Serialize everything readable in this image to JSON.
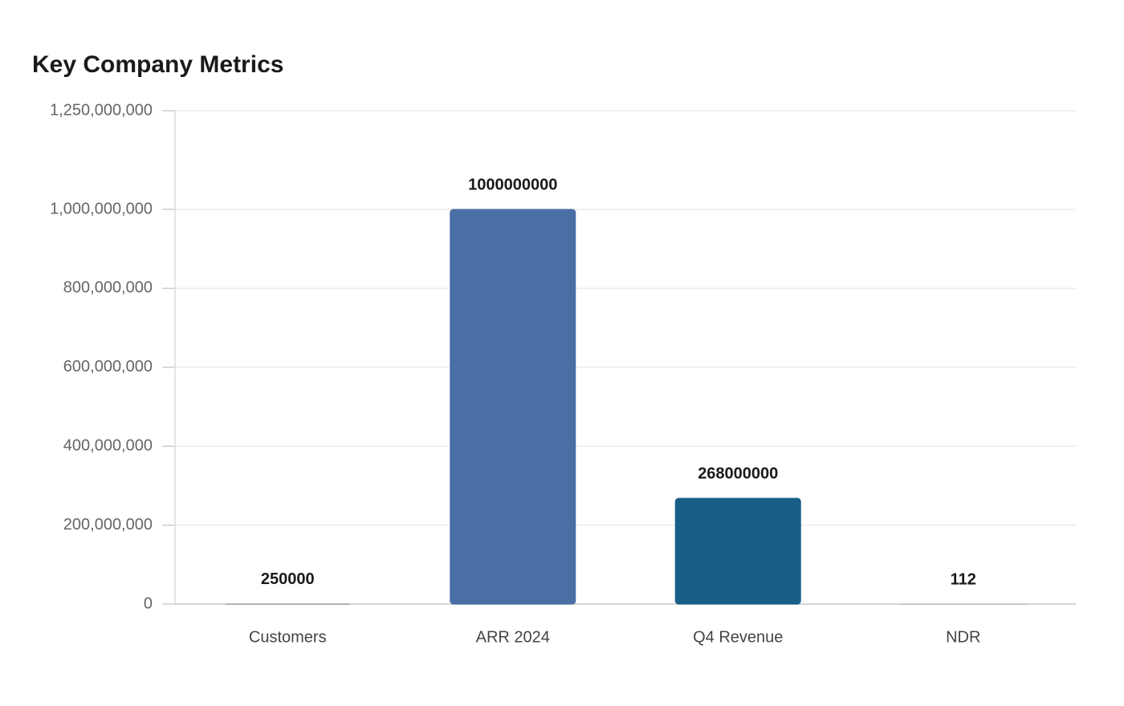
{
  "chart_data": {
    "type": "bar",
    "title": "Key Company Metrics",
    "categories": [
      "Customers",
      "ARR 2024",
      "Q4 Revenue",
      "NDR"
    ],
    "values": [
      250000,
      1000000000,
      268000000,
      112
    ],
    "colors": [
      "#8a8f96",
      "#4a6fa5",
      "#185f88",
      "#a9b1ba"
    ],
    "ylim": [
      0,
      1250000000
    ],
    "yticks": [
      0,
      {
        "value": 200000000,
        "label": "200,000,000"
      },
      {
        "value": 400000000,
        "label": "400,000,000"
      },
      {
        "value": 600000000,
        "label": "600,000,000"
      },
      {
        "value": 800000000,
        "label": "800,000,000"
      },
      {
        "value": 1000000000,
        "label": "1,000,000,000"
      },
      {
        "value": 1250000000,
        "label": "1,250,000,000"
      }
    ],
    "grid": true
  }
}
